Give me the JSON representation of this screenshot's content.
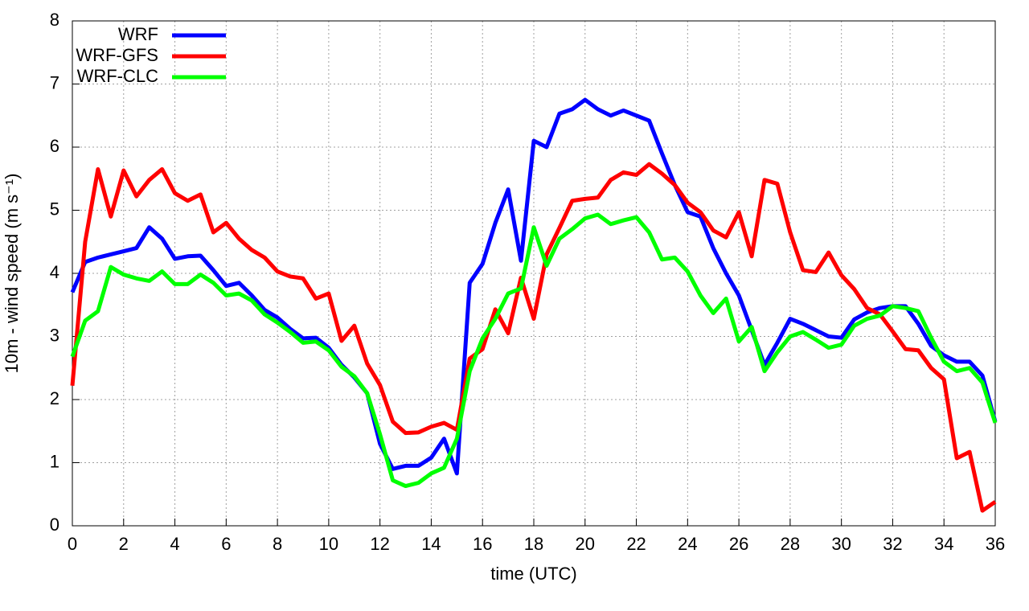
{
  "chart_data": {
    "type": "line",
    "xlabel": "time (UTC)",
    "ylabel": "10m - wind speed  (m s⁻¹)",
    "x": [
      0,
      0.5,
      1,
      1.5,
      2,
      2.5,
      3,
      3.5,
      4,
      4.5,
      5,
      5.5,
      6,
      6.5,
      7,
      7.5,
      8,
      8.5,
      9,
      9.5,
      10,
      10.5,
      11,
      11.5,
      12,
      12.5,
      13,
      13.5,
      14,
      14.5,
      15,
      15.5,
      16,
      16.5,
      17,
      17.5,
      18,
      18.5,
      19,
      19.5,
      20,
      20.5,
      21,
      21.5,
      22,
      22.5,
      23,
      23.5,
      24,
      24.5,
      25,
      25.5,
      26,
      26.5,
      27,
      27.5,
      28,
      28.5,
      29,
      29.5,
      30,
      30.5,
      31,
      31.5,
      32,
      32.5,
      33,
      33.5,
      34,
      34.5,
      35,
      35.5,
      36
    ],
    "series": [
      {
        "name": "WRF",
        "color": "#0000ff",
        "values": [
          3.7,
          4.18,
          4.25,
          4.3,
          4.35,
          4.4,
          4.73,
          4.55,
          4.23,
          4.27,
          4.28,
          4.05,
          3.8,
          3.85,
          3.65,
          3.42,
          3.3,
          3.12,
          2.97,
          2.98,
          2.82,
          2.55,
          2.35,
          2.1,
          1.3,
          0.9,
          0.95,
          0.95,
          1.08,
          1.38,
          0.83,
          3.85,
          4.15,
          4.8,
          5.33,
          4.2,
          6.1,
          6.0,
          6.53,
          6.6,
          6.75,
          6.6,
          6.5,
          6.58,
          6.5,
          6.42,
          5.9,
          5.4,
          4.97,
          4.9,
          4.4,
          4.0,
          3.65,
          3.1,
          2.55,
          2.9,
          3.28,
          3.2,
          3.1,
          3.0,
          2.98,
          3.27,
          3.38,
          3.45,
          3.48,
          3.48,
          3.2,
          2.85,
          2.7,
          2.6,
          2.6,
          2.38,
          1.65
        ]
      },
      {
        "name": "WRF-GFS",
        "color": "#ff0000",
        "values": [
          2.22,
          4.5,
          5.65,
          4.9,
          5.63,
          5.22,
          5.48,
          5.65,
          5.27,
          5.15,
          5.25,
          4.65,
          4.8,
          4.55,
          4.37,
          4.25,
          4.03,
          3.95,
          3.92,
          3.6,
          3.68,
          2.93,
          3.17,
          2.57,
          2.23,
          1.65,
          1.47,
          1.48,
          1.57,
          1.63,
          1.52,
          2.65,
          2.8,
          3.43,
          3.05,
          3.93,
          3.28,
          4.3,
          4.72,
          5.15,
          5.18,
          5.2,
          5.48,
          5.6,
          5.56,
          5.73,
          5.58,
          5.4,
          5.12,
          4.97,
          4.68,
          4.57,
          4.97,
          4.27,
          5.48,
          5.42,
          4.65,
          4.05,
          4.02,
          4.33,
          3.97,
          3.75,
          3.45,
          3.35,
          3.08,
          2.8,
          2.78,
          2.5,
          2.32,
          1.07,
          1.17,
          0.24,
          0.38
        ]
      },
      {
        "name": "WRF-CLC",
        "color": "#00ff00",
        "values": [
          2.68,
          3.25,
          3.4,
          4.1,
          3.98,
          3.92,
          3.88,
          4.03,
          3.83,
          3.83,
          3.98,
          3.85,
          3.65,
          3.68,
          3.57,
          3.35,
          3.22,
          3.07,
          2.9,
          2.92,
          2.78,
          2.52,
          2.37,
          2.1,
          1.45,
          0.72,
          0.63,
          0.68,
          0.83,
          0.92,
          1.38,
          2.45,
          2.97,
          3.28,
          3.68,
          3.76,
          4.73,
          4.12,
          4.55,
          4.7,
          4.87,
          4.93,
          4.78,
          4.84,
          4.89,
          4.65,
          4.22,
          4.25,
          4.03,
          3.65,
          3.37,
          3.6,
          2.92,
          3.15,
          2.45,
          2.75,
          3.0,
          3.07,
          2.95,
          2.82,
          2.87,
          3.17,
          3.28,
          3.33,
          3.48,
          3.45,
          3.4,
          2.98,
          2.6,
          2.45,
          2.5,
          2.27,
          1.63
        ]
      }
    ],
    "xlim": [
      0,
      36
    ],
    "xticks": [
      0,
      2,
      4,
      6,
      8,
      10,
      12,
      14,
      16,
      18,
      20,
      22,
      24,
      26,
      28,
      30,
      32,
      34,
      36
    ],
    "ylim": [
      0,
      8
    ],
    "yticks": [
      0,
      1,
      2,
      3,
      4,
      5,
      6,
      7,
      8
    ],
    "grid": true,
    "legend": "top-left"
  }
}
